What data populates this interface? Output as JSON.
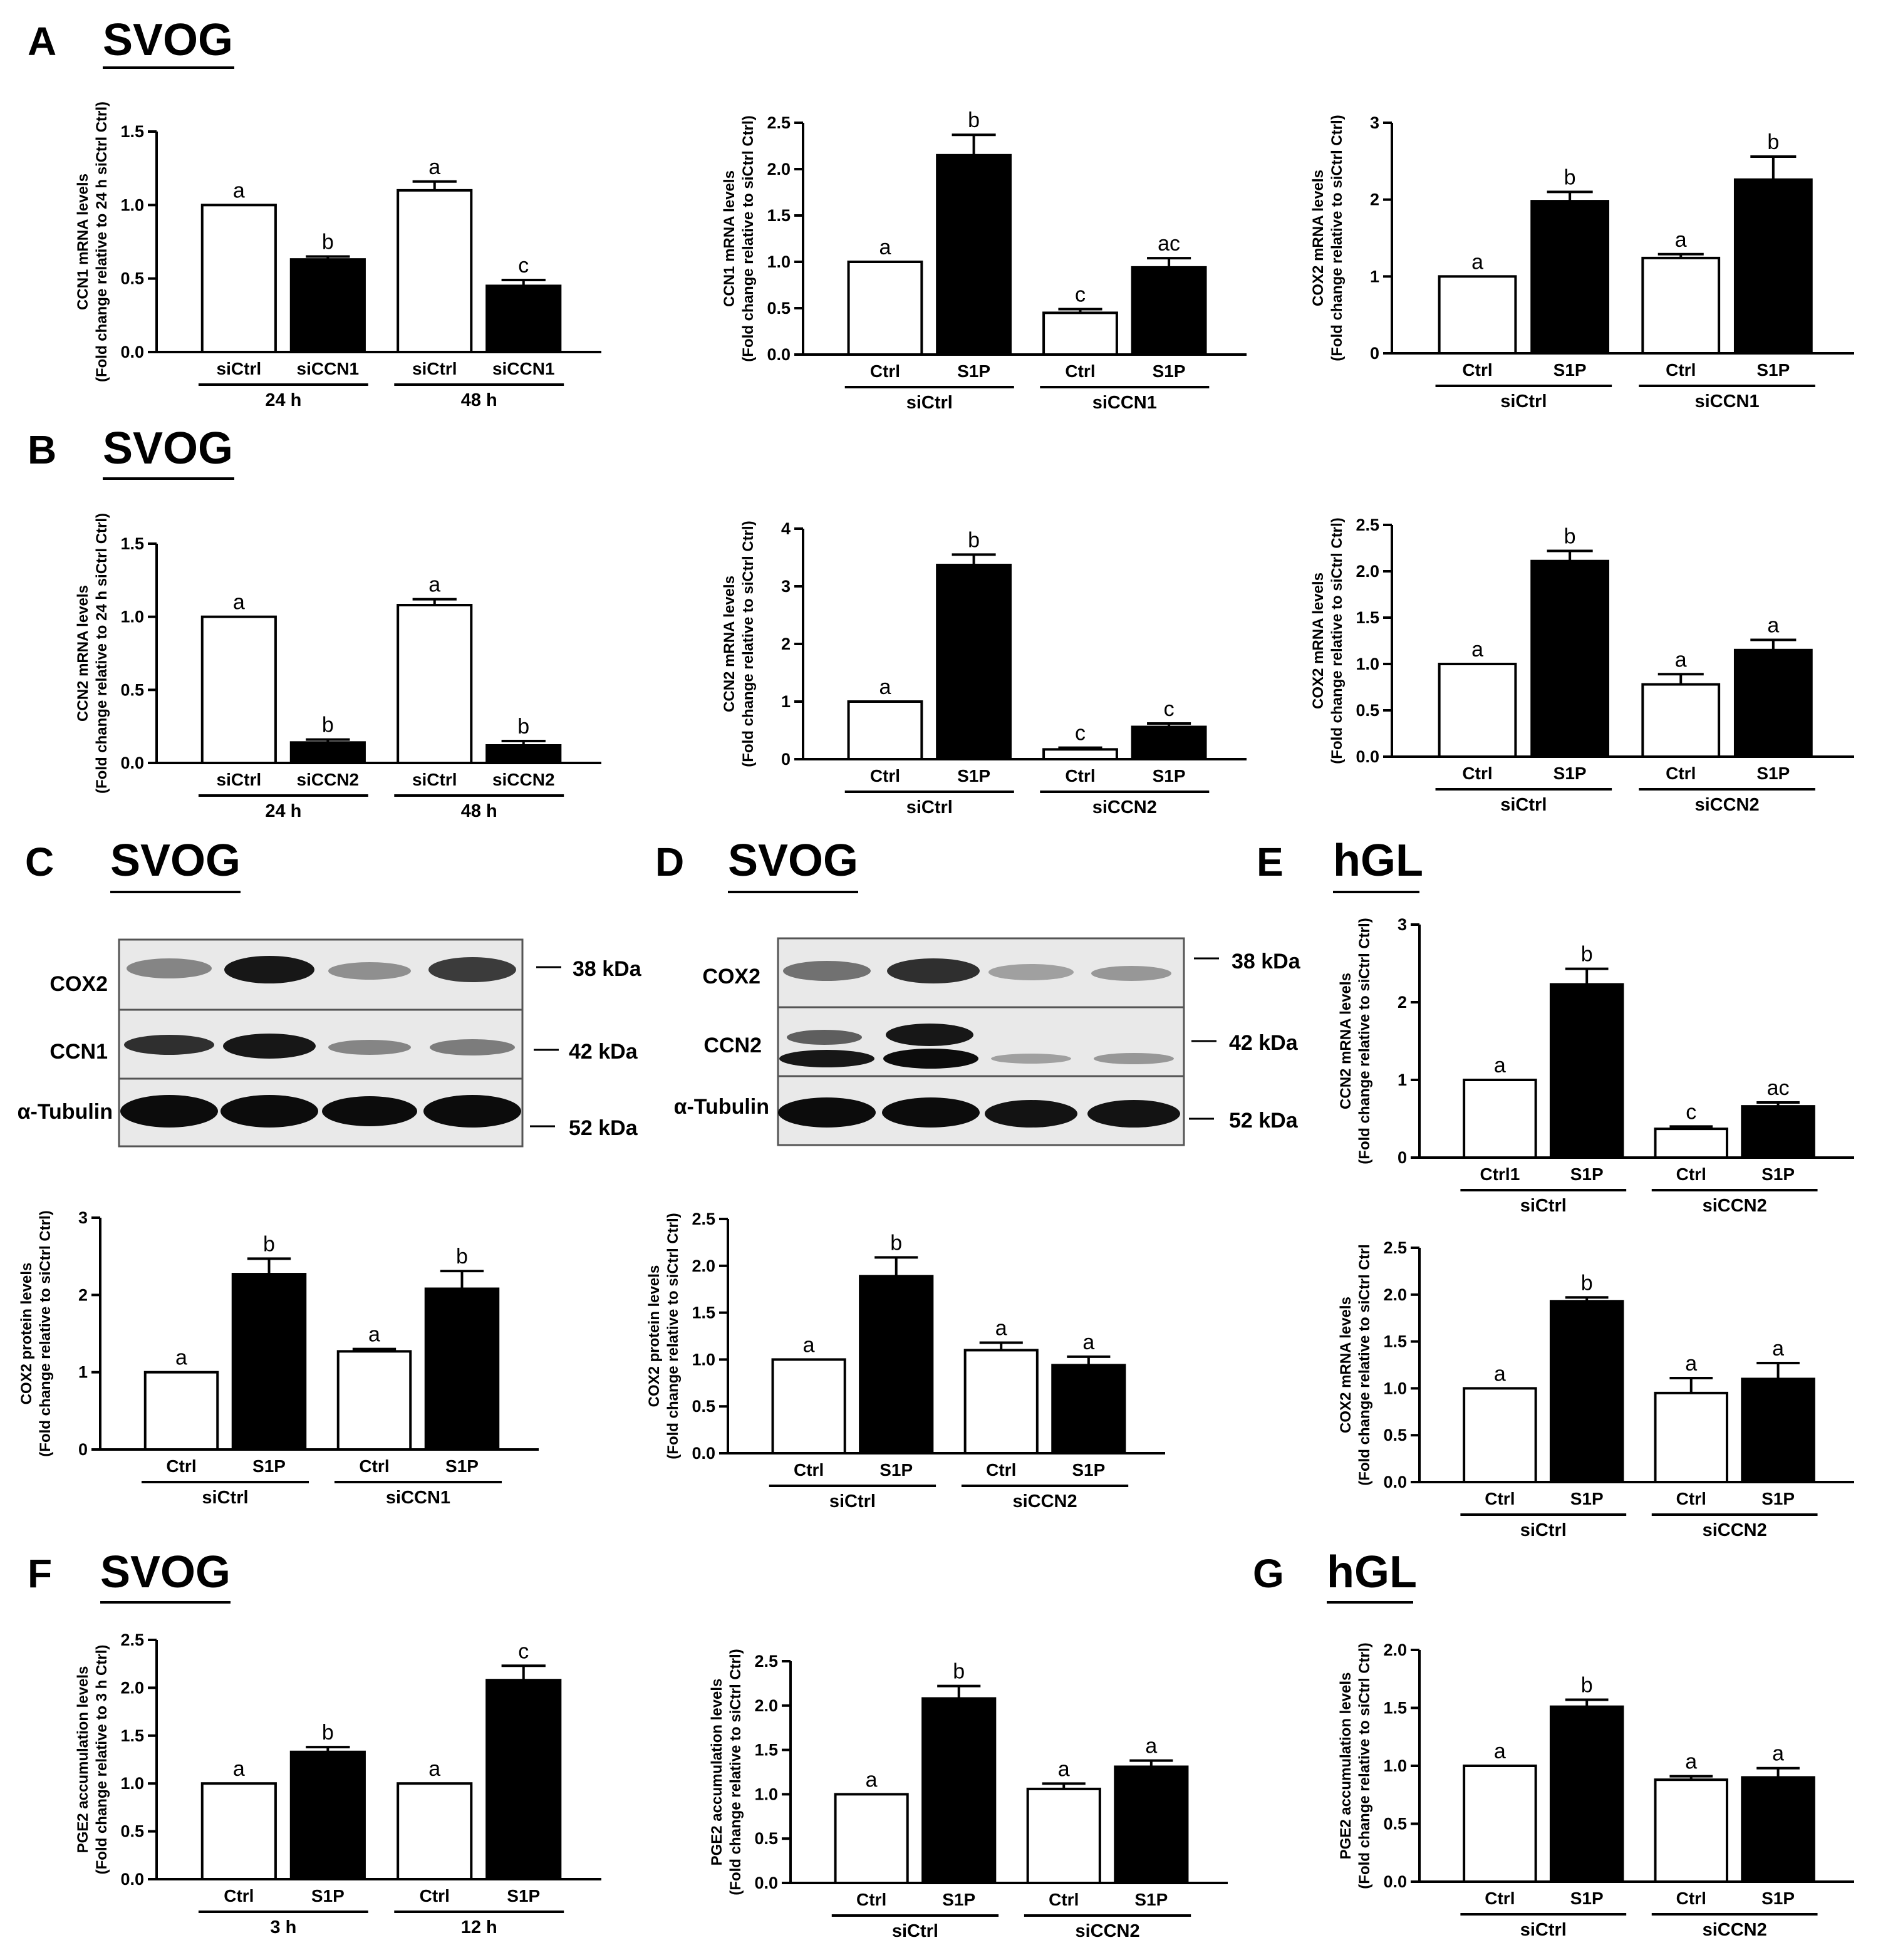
{
  "panels": [
    {
      "letter": "A",
      "title": "SVOG"
    },
    {
      "letter": "B",
      "title": "SVOG"
    },
    {
      "letter": "C",
      "title": "SVOG"
    },
    {
      "letter": "D",
      "title": "SVOG"
    },
    {
      "letter": "E",
      "title": "hGL"
    },
    {
      "letter": "F",
      "title": "SVOG"
    },
    {
      "letter": "G",
      "title": "hGL"
    }
  ],
  "western_blots": [
    {
      "bands": [
        "COX2",
        "CCN1",
        "α-Tubulin"
      ],
      "markers": [
        "38 kDa",
        "42 kDa",
        "52 kDa"
      ]
    },
    {
      "bands": [
        "COX2",
        "CCN2",
        "α-Tubulin"
      ],
      "markers": [
        "38 kDa",
        "42 kDa",
        "52 kDa"
      ]
    }
  ],
  "colors": {
    "ctrl_bar": "#ffffff",
    "treated_bar": "#000000",
    "stroke": "#000000"
  },
  "chart_data": [
    {
      "type": "bar",
      "ylabel": [
        "CCN1 mRNA levels",
        "(Fold change relative to 24 h siCtrl Ctrl)"
      ],
      "ylim": [
        0,
        1.5
      ],
      "yticks": [
        "0.0",
        "0.5",
        "1.0",
        "1.5"
      ],
      "categories": [
        "siCtrl",
        "siCCN1",
        "siCtrl",
        "siCCN1"
      ],
      "groups": [
        "24 h",
        "48 h"
      ],
      "values": [
        1.0,
        0.63,
        1.1,
        0.45
      ],
      "errors": [
        0,
        0.02,
        0.06,
        0.04
      ],
      "letters": [
        "a",
        "b",
        "a",
        "c"
      ]
    },
    {
      "type": "bar",
      "ylabel": [
        "CCN1 mRNA levels",
        "(Fold change relative to siCtrl Ctrl)"
      ],
      "ylim": [
        0,
        2.5
      ],
      "yticks": [
        "0.0",
        "0.5",
        "1.0",
        "1.5",
        "2.0",
        "2.5"
      ],
      "categories": [
        "Ctrl",
        "S1P",
        "Ctrl",
        "S1P"
      ],
      "groups": [
        "siCtrl",
        "siCCN1"
      ],
      "values": [
        1.0,
        2.15,
        0.45,
        0.94
      ],
      "errors": [
        0,
        0.22,
        0.04,
        0.1
      ],
      "letters": [
        "a",
        "b",
        "c",
        "ac"
      ]
    },
    {
      "type": "bar",
      "ylabel": [
        "COX2 mRNA levels",
        "(Fold change relative to siCtrl Ctrl)"
      ],
      "ylim": [
        0,
        3
      ],
      "yticks": [
        "0",
        "1",
        "2",
        "3"
      ],
      "categories": [
        "Ctrl",
        "S1P",
        "Ctrl",
        "S1P"
      ],
      "groups": [
        "siCtrl",
        "siCCN1"
      ],
      "values": [
        1.0,
        1.98,
        1.24,
        2.26
      ],
      "errors": [
        0,
        0.12,
        0.05,
        0.3
      ],
      "letters": [
        "a",
        "b",
        "a",
        "b"
      ]
    },
    {
      "type": "bar",
      "ylabel": [
        "CCN2 mRNA levels",
        "(Fold change relative to 24 h siCtrl Ctrl)"
      ],
      "ylim": [
        0,
        1.5
      ],
      "yticks": [
        "0.0",
        "0.5",
        "1.0",
        "1.5"
      ],
      "categories": [
        "siCtrl",
        "siCCN2",
        "siCtrl",
        "siCCN2"
      ],
      "groups": [
        "24 h",
        "48 h"
      ],
      "values": [
        1.0,
        0.14,
        1.08,
        0.12
      ],
      "errors": [
        0,
        0.02,
        0.04,
        0.03
      ],
      "letters": [
        "a",
        "b",
        "a",
        "b"
      ]
    },
    {
      "type": "bar",
      "ylabel": [
        "CCN2 mRNA levels",
        "(Fold change relative to siCtrl Ctrl)"
      ],
      "ylim": [
        0,
        4
      ],
      "yticks": [
        "0",
        "1",
        "2",
        "3",
        "4"
      ],
      "categories": [
        "Ctrl",
        "S1P",
        "Ctrl",
        "S1P"
      ],
      "groups": [
        "siCtrl",
        "siCCN2"
      ],
      "values": [
        1.0,
        3.37,
        0.17,
        0.56
      ],
      "errors": [
        0,
        0.18,
        0.03,
        0.06
      ],
      "letters": [
        "a",
        "b",
        "c",
        "c"
      ]
    },
    {
      "type": "bar",
      "ylabel": [
        "COX2 mRNA levels",
        "(Fold change relative to siCtrl Ctrl)"
      ],
      "ylim": [
        0,
        2.5
      ],
      "yticks": [
        "0.0",
        "0.5",
        "1.0",
        "1.5",
        "2.0",
        "2.5"
      ],
      "categories": [
        "Ctrl",
        "S1P",
        "Ctrl",
        "S1P"
      ],
      "groups": [
        "siCtrl",
        "siCCN2"
      ],
      "values": [
        1.0,
        2.11,
        0.78,
        1.15
      ],
      "errors": [
        0,
        0.11,
        0.11,
        0.11
      ],
      "letters": [
        "a",
        "b",
        "a",
        "a"
      ]
    },
    {
      "type": "bar",
      "ylabel": [
        "COX2 protein levels",
        "(Fold change relative to siCtrl Ctrl)"
      ],
      "ylim": [
        0,
        3
      ],
      "yticks": [
        "0",
        "1",
        "2",
        "3"
      ],
      "categories": [
        "Ctrl",
        "S1P",
        "Ctrl",
        "S1P"
      ],
      "groups": [
        "siCtrl",
        "siCCN1"
      ],
      "values": [
        1.0,
        2.27,
        1.27,
        2.08
      ],
      "errors": [
        0,
        0.2,
        0.03,
        0.23
      ],
      "letters": [
        "a",
        "b",
        "a",
        "b"
      ]
    },
    {
      "type": "bar",
      "ylabel": [
        "COX2 protein levels",
        "(Fold change relative to siCtrl Ctrl)"
      ],
      "ylim": [
        0,
        2.5
      ],
      "yticks": [
        "0.0",
        "0.5",
        "1.0",
        "1.5",
        "2.0",
        "2.5"
      ],
      "categories": [
        "Ctrl",
        "S1P",
        "Ctrl",
        "S1P"
      ],
      "groups": [
        "siCtrl",
        "siCCN2"
      ],
      "values": [
        1.0,
        1.89,
        1.1,
        0.94
      ],
      "errors": [
        0,
        0.2,
        0.08,
        0.09
      ],
      "letters": [
        "a",
        "b",
        "a",
        "a"
      ]
    },
    {
      "type": "bar",
      "ylabel": [
        "CCN2 mRNA levels",
        "(Fold change relative to siCtrl Ctrl)"
      ],
      "ylim": [
        0,
        3
      ],
      "yticks": [
        "0",
        "1",
        "2",
        "3"
      ],
      "categories": [
        "Ctrl1",
        "S1P",
        "Ctrl",
        "S1P"
      ],
      "groups": [
        "siCtrl",
        "siCCN2"
      ],
      "values": [
        1.0,
        2.23,
        0.37,
        0.66
      ],
      "errors": [
        0,
        0.2,
        0.03,
        0.05
      ],
      "letters": [
        "a",
        "b",
        "c",
        "ac"
      ]
    },
    {
      "type": "bar",
      "ylabel": [
        "COX2 mRNA levels",
        "(Fold change relative to siCtrl Ctrl"
      ],
      "ylim": [
        0,
        2.5
      ],
      "yticks": [
        "0.0",
        "0.5",
        "1.0",
        "1.5",
        "2.0",
        "2.5"
      ],
      "categories": [
        "Ctrl",
        "S1P",
        "Ctrl",
        "S1P"
      ],
      "groups": [
        "siCtrl",
        "siCCN2"
      ],
      "values": [
        1.0,
        1.93,
        0.95,
        1.1
      ],
      "errors": [
        0,
        0.04,
        0.16,
        0.17
      ],
      "letters": [
        "a",
        "b",
        "a",
        "a"
      ]
    },
    {
      "type": "bar",
      "ylabel": [
        "PGE2 accumulation levels",
        "(Fold change relative to 3 h Ctrl)"
      ],
      "ylim": [
        0,
        2.5
      ],
      "yticks": [
        "0.0",
        "0.5",
        "1.0",
        "1.5",
        "2.0",
        "2.5"
      ],
      "categories": [
        "Ctrl",
        "S1P",
        "Ctrl",
        "S1P"
      ],
      "groups": [
        "3 h",
        "12 h"
      ],
      "values": [
        1.0,
        1.33,
        1.0,
        2.08
      ],
      "errors": [
        0,
        0.05,
        0,
        0.15
      ],
      "letters": [
        "a",
        "b",
        "a",
        "c"
      ]
    },
    {
      "type": "bar",
      "ylabel": [
        "PGE2 accumulation levels",
        "(Fold change relative to siCtrl Ctrl)"
      ],
      "ylim": [
        0,
        2.5
      ],
      "yticks": [
        "0.0",
        "0.5",
        "1.0",
        "1.5",
        "2.0",
        "2.5"
      ],
      "categories": [
        "Ctrl",
        "S1P",
        "Ctrl",
        "S1P"
      ],
      "groups": [
        "siCtrl",
        "siCCN2"
      ],
      "values": [
        1.0,
        2.08,
        1.06,
        1.31
      ],
      "errors": [
        0,
        0.14,
        0.06,
        0.07
      ],
      "letters": [
        "a",
        "b",
        "a",
        "a"
      ]
    },
    {
      "type": "bar",
      "ylabel": [
        "PGE2 accumulation levels",
        "(Fold change relative to siCtrl Ctrl)"
      ],
      "ylim": [
        0,
        2.0
      ],
      "yticks": [
        "0.0",
        "0.5",
        "1.0",
        "1.5",
        "2.0"
      ],
      "categories": [
        "Ctrl",
        "S1P",
        "Ctrl",
        "S1P"
      ],
      "groups": [
        "siCtrl",
        "siCCN2"
      ],
      "values": [
        1.0,
        1.51,
        0.88,
        0.9
      ],
      "errors": [
        0,
        0.06,
        0.03,
        0.08
      ],
      "letters": [
        "a",
        "b",
        "a",
        "a"
      ]
    }
  ]
}
